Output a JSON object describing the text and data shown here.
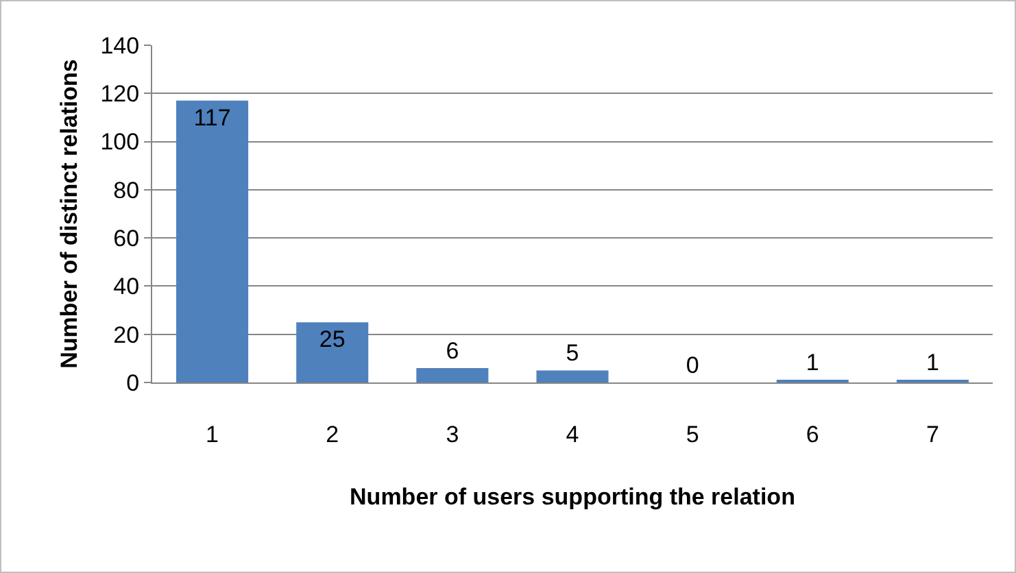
{
  "chart_data": {
    "type": "bar",
    "xlabel": "Number of users supporting the relation",
    "ylabel": "Number of distinct relations",
    "categories": [
      "1",
      "2",
      "3",
      "4",
      "5",
      "6",
      "7"
    ],
    "values": [
      117,
      25,
      6,
      5,
      0,
      1,
      1
    ],
    "color": "#4f81bd",
    "ylim": [
      0,
      140
    ],
    "yticks": [
      0,
      20,
      40,
      60,
      80,
      100,
      120,
      140
    ],
    "grid": "y",
    "data_labels": true
  }
}
